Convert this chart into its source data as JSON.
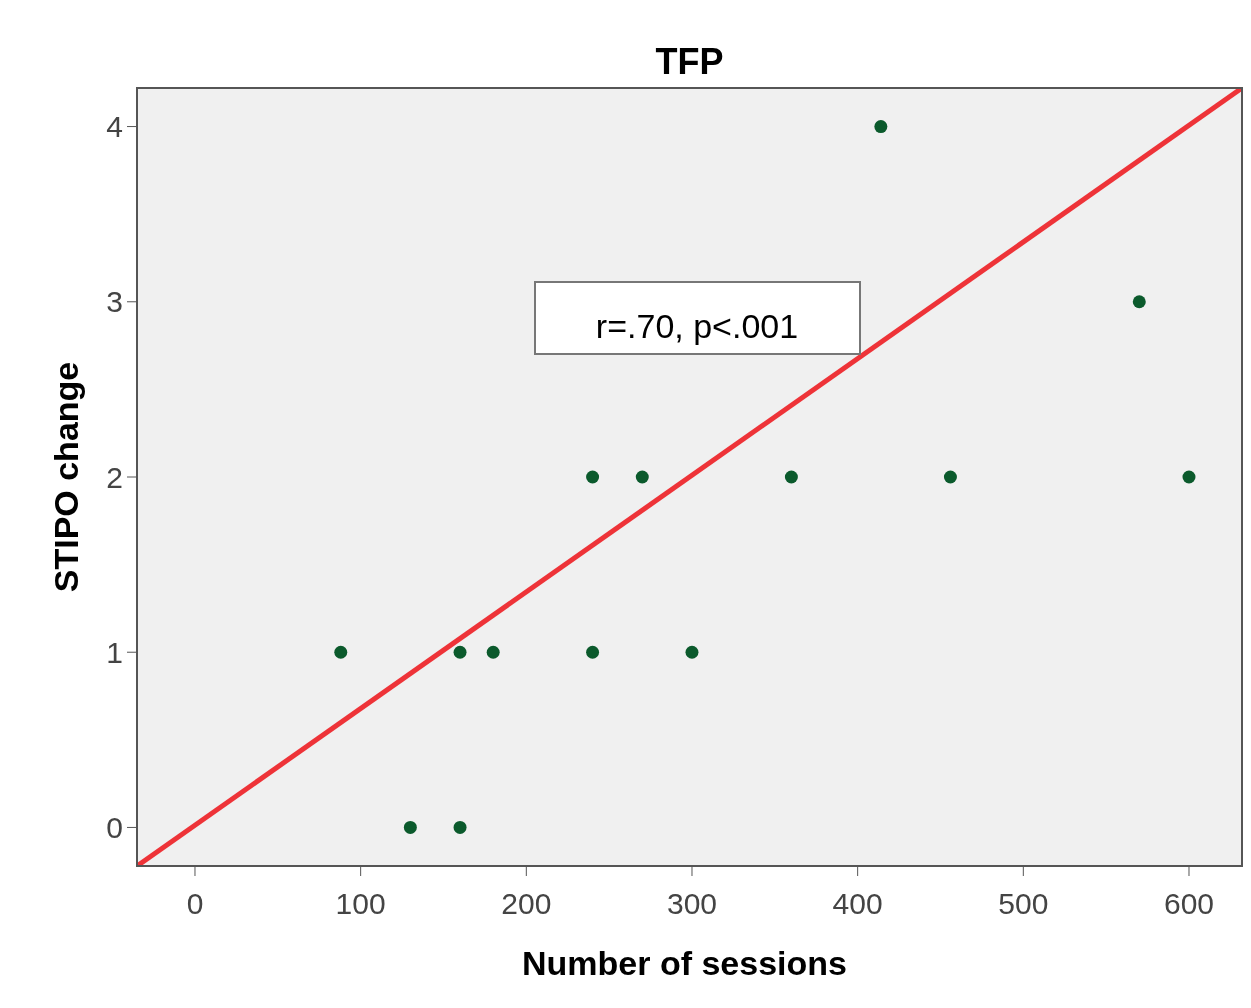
{
  "chart_data": {
    "type": "scatter",
    "title": "TFP",
    "xlabel": "Number of sessions",
    "ylabel": "STIPO change",
    "xlim": [
      -35,
      632
    ],
    "xticks": [
      0,
      100,
      200,
      300,
      400,
      500,
      600
    ],
    "ylim": [
      -0.22,
      4.22
    ],
    "yticks": [
      0,
      1,
      2,
      3,
      4
    ],
    "grid": false,
    "annotations": [
      "r=.70, p<.001"
    ],
    "series": [
      {
        "marker": "circle",
        "color": "#0b5a2c",
        "x": [
          88,
          130,
          160,
          160,
          180,
          240,
          240,
          270,
          300,
          360,
          414,
          456,
          570,
          600
        ],
        "values": [
          1,
          0,
          0,
          1,
          1,
          1,
          2,
          2,
          1,
          2,
          4,
          2,
          3,
          2
        ]
      },
      {
        "type": "line",
        "marker": "none",
        "color": "#ee3338",
        "x": [
          -35,
          632
        ],
        "values": [
          -0.22,
          4.22
        ]
      }
    ]
  }
}
